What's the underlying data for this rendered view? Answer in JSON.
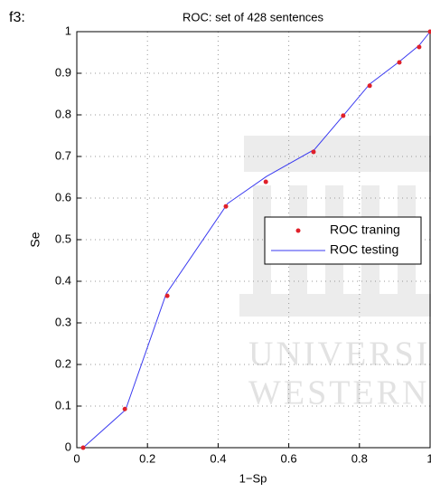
{
  "figure_label": "f3:",
  "watermark": [
    "UNIVERSIT",
    "WESTERN"
  ],
  "chart_data": {
    "type": "line",
    "title": "ROC: set of 428 sentences",
    "x_label": "1−Sp",
    "y_label": "Se",
    "xlim": [
      0,
      1
    ],
    "ylim": [
      0,
      1
    ],
    "xticks": [
      0,
      0.2,
      0.4,
      0.6,
      0.8,
      1
    ],
    "yticks": [
      0,
      0.1,
      0.2,
      0.3,
      0.4,
      0.5,
      0.6,
      0.7,
      0.8,
      0.9,
      1
    ],
    "grid": true,
    "legend_position": "right",
    "series": [
      {
        "name": "ROC traning",
        "color": "#e0202a",
        "style": "markers",
        "x": [
          0.018,
          0.136,
          0.256,
          0.422,
          0.535,
          0.67,
          0.754,
          0.829,
          0.913,
          0.969,
          1
        ],
        "values": [
          0,
          0.093,
          0.365,
          0.58,
          0.639,
          0.711,
          0.798,
          0.87,
          0.926,
          0.963,
          1
        ]
      },
      {
        "name": "ROC testing",
        "color": "#3a3af0",
        "style": "line",
        "x": [
          0.018,
          0.138,
          0.253,
          0.427,
          0.537,
          0.673,
          0.754,
          0.829,
          0.913,
          0.969,
          1
        ],
        "values": [
          0,
          0.091,
          0.37,
          0.587,
          0.652,
          0.717,
          0.798,
          0.874,
          0.928,
          0.967,
          1
        ]
      }
    ]
  }
}
